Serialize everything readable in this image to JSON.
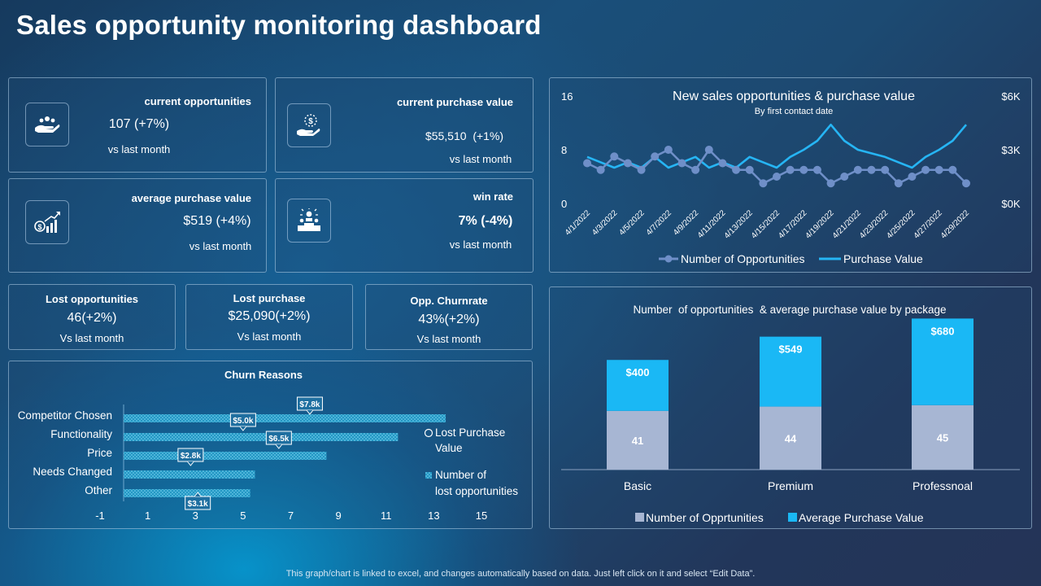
{
  "page": {
    "title": "Sales opportunity monitoring dashboard",
    "footer": "This graph/chart is linked to excel, and changes automatically based on data. Just left click on it and select “Edit Data”."
  },
  "kpis": {
    "current_opportunities": {
      "label": "current opportunities",
      "value": "107 (+7%)",
      "sub": "vs last month",
      "icon": "hands-people-icon"
    },
    "current_purchase_value": {
      "label": "current purchase value",
      "value": "$55,510  (+1%)",
      "sub": "vs last month",
      "icon": "hand-money-icon"
    },
    "average_purchase_value": {
      "label": "average purchase value",
      "value": "$519 (+4%)",
      "sub": "vs last month",
      "icon": "money-growth-icon"
    },
    "win_rate": {
      "label": "win rate",
      "value": "7% (-4%)",
      "sub": "vs last month",
      "icon": "winner-podium-icon"
    }
  },
  "mini_kpis": {
    "lost_opportunities": {
      "label": "Lost opportunities",
      "value": "46(+2%)",
      "sub": "Vs last month"
    },
    "lost_purchase": {
      "label": "Lost purchase",
      "value": "$25,090(+2%)",
      "sub": "Vs last month"
    },
    "churnrate": {
      "label": "Opp. Churnrate",
      "value": "43%(+2%)",
      "sub": "Vs last month"
    }
  },
  "colors": {
    "accent_blue": "#1ab8f5",
    "line_blue": "#26b5f4",
    "dot_blue": "#6f8fc8",
    "bar_gray": "#a7b6d3",
    "hatch_blue": "#2ea9d6"
  },
  "chart_data": [
    {
      "type": "line",
      "title": "New sales opportunities & purchase value",
      "subtitle": "By first contact date",
      "x": [
        "4/1/2022",
        "4/2/2022",
        "4/3/2022",
        "4/4/2022",
        "4/5/2022",
        "4/6/2022",
        "4/7/2022",
        "4/8/2022",
        "4/9/2022",
        "4/10/2022",
        "4/11/2022",
        "4/12/2022",
        "4/13/2022",
        "4/14/2022",
        "4/15/2022",
        "4/16/2022",
        "4/17/2022",
        "4/18/2022",
        "4/19/2022",
        "4/20/2022",
        "4/21/2022",
        "4/22/2022",
        "4/23/2022",
        "4/24/2022",
        "4/25/2022",
        "4/26/2022",
        "4/27/2022",
        "4/28/2022",
        "4/29/2022"
      ],
      "x_tick_labels": [
        "4/1/2022",
        "4/3/2022",
        "4/5/2022",
        "4/7/2022",
        "4/9/2022",
        "4/11/2022",
        "4/13/2022",
        "4/15/2022",
        "4/17/2022",
        "4/19/2022",
        "4/21/2022",
        "4/23/2022",
        "4/25/2022",
        "4/27/2022",
        "4/29/2022"
      ],
      "left_axis": {
        "range": [
          0,
          16
        ],
        "ticks": [
          "16",
          "8",
          "0"
        ]
      },
      "right_axis": {
        "range": [
          0,
          6000
        ],
        "ticks": [
          "$6K",
          "$3K",
          "$0K"
        ]
      },
      "series": [
        {
          "name": "Number of Opportunities",
          "axis": "left",
          "marker": "circle",
          "values": [
            6,
            5,
            7,
            6,
            5,
            7,
            8,
            6,
            5,
            8,
            6,
            5,
            5,
            3,
            4,
            5,
            5,
            5,
            3,
            4,
            5,
            5,
            5,
            3,
            4,
            5,
            5,
            5,
            3
          ]
        },
        {
          "name": "Purchase Value",
          "axis": "right",
          "values": [
            2600,
            2300,
            2000,
            2300,
            2000,
            2600,
            2000,
            2300,
            2600,
            2000,
            2300,
            2000,
            2600,
            2300,
            2000,
            2600,
            3000,
            3500,
            4400,
            3500,
            3000,
            2800,
            2600,
            2300,
            2000,
            2600,
            3000,
            3500,
            4400
          ]
        }
      ]
    },
    {
      "type": "bar",
      "stacked": true,
      "title": "Number  of opportunities  & average purchase value by package",
      "categories": [
        "Basic",
        "Premium",
        "Professnoal"
      ],
      "series": [
        {
          "name": "Number of Opprtunities",
          "values": [
            41,
            44,
            45
          ],
          "labels": [
            "41",
            "44",
            "45"
          ]
        },
        {
          "name": "Average Purchase Value",
          "values": [
            400,
            549,
            680
          ],
          "labels": [
            "$400",
            "$549",
            "$680"
          ]
        }
      ]
    },
    {
      "type": "bar",
      "orientation": "horizontal",
      "title": "Churn Reasons",
      "categories": [
        "Competitor Chosen",
        "Functionality",
        "Price",
        "Needs Changed",
        "Other"
      ],
      "xlim": [
        -1,
        15
      ],
      "x_tick_labels": [
        "-1",
        "1",
        "3",
        "5",
        "7",
        "9",
        "11",
        "13",
        "15"
      ],
      "series": [
        {
          "name": "Number of lost opportunities",
          "values": [
            13.5,
            11.5,
            8.5,
            5.5,
            5.3
          ]
        },
        {
          "name": "Lost Purchase Value",
          "values": [
            7.8,
            5.0,
            6.5,
            2.8,
            3.1
          ],
          "labels": [
            "$7.8k",
            "$5.0k",
            "$6.5k",
            "$2.8k",
            "$3.1k"
          ]
        }
      ],
      "legend": [
        "Lost Purchase Value",
        "Number of lost opportunities"
      ]
    }
  ]
}
